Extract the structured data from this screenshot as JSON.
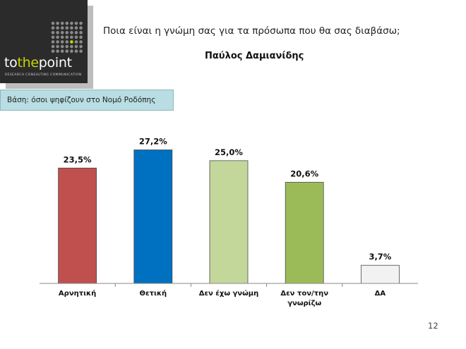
{
  "logo": {
    "brand_part1": "to",
    "brand_part2": "the",
    "brand_part3": "point",
    "tagline": "RESEARCH  CONSULTING  COMMUNICATION",
    "accent_color": "#c8d400"
  },
  "header": {
    "question": "Ποια είναι η γνώμη σας για τα πρόσωπα που θα σας διαβάσω;",
    "subject": "Παύλος Δαμιανίδης"
  },
  "basis": "Βάση: όσοι ψηφίζουν στο  Νομό Ροδόπης",
  "page_number": "12",
  "chart_data": {
    "type": "bar",
    "categories": [
      [
        "Αρνητική"
      ],
      [
        "Θετική"
      ],
      [
        "Δεν έχω γνώμη"
      ],
      [
        "Δεν τον/την",
        "γνωρίζω"
      ],
      [
        "ΔΑ"
      ]
    ],
    "values": [
      23.5,
      27.2,
      25.0,
      20.6,
      3.7
    ],
    "value_labels": [
      "23,5%",
      "27,2%",
      "25,0%",
      "20,6%",
      "3,7%"
    ],
    "colors": [
      "#c0504d",
      "#0070c0",
      "#c4d79b",
      "#9bbb59",
      "#f2f2f2"
    ],
    "ylim": [
      0,
      29
    ],
    "grid": false,
    "legend": "none"
  }
}
